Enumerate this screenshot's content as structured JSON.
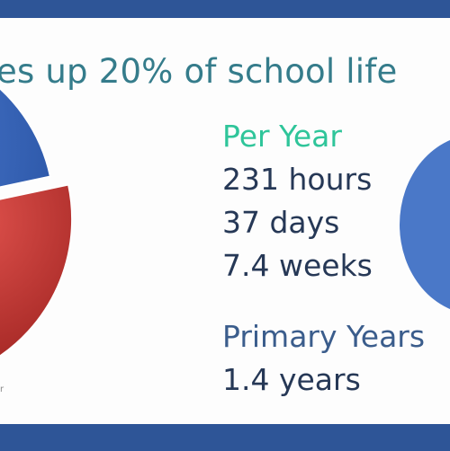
{
  "slide": {
    "title": "es up 20% of school life"
  },
  "stats": {
    "per_year_heading": "Per Year",
    "per_year_items": [
      "231 hours",
      "37 days",
      "7.4 weeks"
    ],
    "primary_heading": "Primary Years",
    "primary_value": "1.4 years"
  },
  "colors": {
    "background_border": "#2e5597",
    "title": "#357c8b",
    "per_year_heading": "#2fc59a",
    "primary_heading": "#3b5d8c",
    "pie_blue": "#3d6fc4",
    "pie_red": "#c33a36",
    "right_circle": "#4a78c8"
  },
  "chart_data": {
    "type": "pie",
    "title": "",
    "series": [
      {
        "values": [
          20,
          80
        ]
      }
    ],
    "colors": [
      "#c33a36",
      "#3d6fc4"
    ],
    "exploded_slice": 0,
    "legend_placement": "bottom-left",
    "legend_fragment": "r"
  }
}
